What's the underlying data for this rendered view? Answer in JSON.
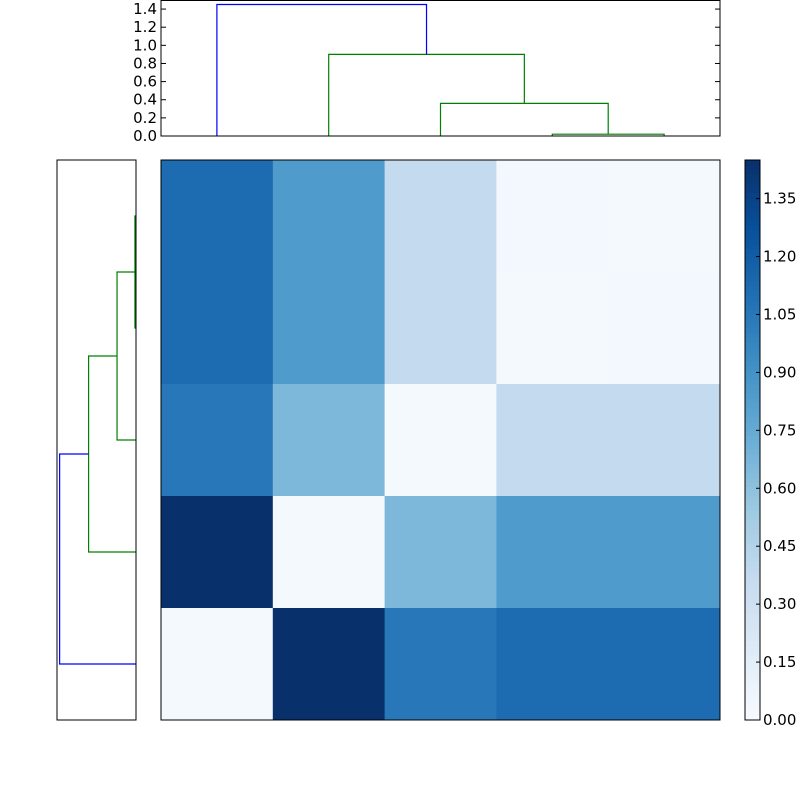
{
  "chart_data": [
    {
      "type": "dendrogram",
      "orientation": "top",
      "ylim": [
        0.0,
        1.5
      ],
      "yticks": [
        0.0,
        0.2,
        0.4,
        0.6,
        0.8,
        1.0,
        1.2,
        1.4
      ],
      "ytick_labels": [
        "0.0",
        "0.2",
        "0.4",
        "0.6",
        "0.8",
        "1.0",
        "1.2",
        "1.4"
      ],
      "leaf_count": 5,
      "links": [
        {
          "left": 3.5,
          "right": 4.5,
          "height": 0.02,
          "left_base": 0,
          "right_base": 0,
          "color": "#008000"
        },
        {
          "left": 2.5,
          "right": 4.0,
          "height": 0.36,
          "left_base": 0,
          "right_base": 0.02,
          "color": "#008000"
        },
        {
          "left": 1.5,
          "right": 3.25,
          "height": 0.9,
          "left_base": 0,
          "right_base": 0.36,
          "color": "#008000"
        },
        {
          "left": 0.5,
          "right": 2.375,
          "height": 1.45,
          "left_base": 0,
          "right_base": 0.9,
          "color": "#0000ff"
        }
      ]
    },
    {
      "type": "dendrogram",
      "orientation": "left",
      "xlim": [
        1.5,
        0.0
      ],
      "leaf_count": 5,
      "links": [
        {
          "left": 3.5,
          "right": 4.5,
          "height": 0.02,
          "left_base": 0,
          "right_base": 0,
          "color": "#008000"
        },
        {
          "left": 2.5,
          "right": 4.0,
          "height": 0.36,
          "left_base": 0,
          "right_base": 0.02,
          "color": "#008000"
        },
        {
          "left": 1.5,
          "right": 3.25,
          "height": 0.9,
          "left_base": 0,
          "right_base": 0.36,
          "color": "#008000"
        },
        {
          "left": 0.5,
          "right": 2.375,
          "height": 1.45,
          "left_base": 0,
          "right_base": 0.9,
          "color": "#0000ff"
        }
      ]
    },
    {
      "type": "heatmap",
      "colormap": "Blues",
      "vmin": 0.0,
      "vmax": 1.45,
      "rows_top_to_bottom": [
        [
          1.12,
          0.85,
          0.37,
          0.03,
          0.02
        ],
        [
          1.12,
          0.85,
          0.37,
          0.02,
          0.03
        ],
        [
          1.05,
          0.66,
          0.02,
          0.37,
          0.37
        ],
        [
          1.45,
          0.02,
          0.66,
          0.85,
          0.85
        ],
        [
          0.02,
          1.45,
          1.05,
          1.12,
          1.12
        ]
      ],
      "colorbar": {
        "ticks": [
          0.0,
          0.15,
          0.3,
          0.45,
          0.6,
          0.75,
          0.9,
          1.05,
          1.2,
          1.35
        ],
        "tick_labels": [
          "0.00",
          "0.15",
          "0.30",
          "0.45",
          "0.60",
          "0.75",
          "0.90",
          "1.05",
          "1.20",
          "1.35"
        ]
      }
    }
  ]
}
